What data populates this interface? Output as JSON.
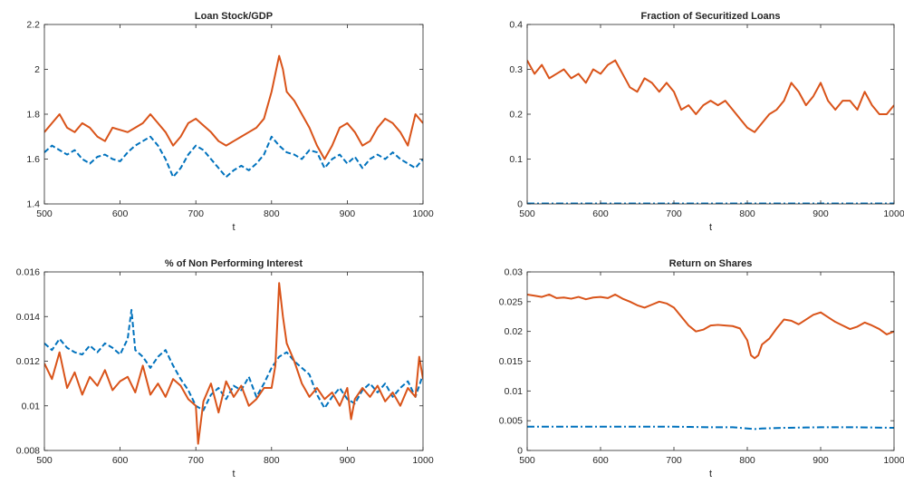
{
  "colors": {
    "series_a": "#0072bd",
    "series_b": "#d95319",
    "axis": "#262626"
  },
  "chart_data": [
    {
      "type": "line",
      "title": "Loan Stock/GDP",
      "xlabel": "t",
      "ylabel": "",
      "xlim": [
        500,
        1000
      ],
      "ylim": [
        1.4,
        2.2
      ],
      "xticks": [
        "500",
        "600",
        "700",
        "800",
        "900",
        "1000"
      ],
      "yticks": [
        "1.4",
        "1.6",
        "1.8",
        "2",
        "2.2"
      ],
      "ytick_values": [
        1.4,
        1.6,
        1.8,
        2.0,
        2.2
      ],
      "grid": false,
      "series": [
        {
          "style": "dashed",
          "color": "#0072bd",
          "x": [
            500,
            510,
            520,
            530,
            540,
            550,
            560,
            570,
            580,
            590,
            600,
            610,
            620,
            630,
            640,
            650,
            660,
            670,
            680,
            690,
            700,
            710,
            720,
            730,
            740,
            750,
            760,
            770,
            780,
            790,
            800,
            810,
            820,
            830,
            840,
            850,
            860,
            870,
            880,
            890,
            900,
            910,
            920,
            930,
            940,
            950,
            960,
            970,
            980,
            990,
            1000
          ],
          "y": [
            1.63,
            1.66,
            1.64,
            1.62,
            1.64,
            1.6,
            1.58,
            1.61,
            1.62,
            1.6,
            1.59,
            1.63,
            1.66,
            1.68,
            1.7,
            1.66,
            1.6,
            1.52,
            1.56,
            1.62,
            1.66,
            1.64,
            1.6,
            1.56,
            1.52,
            1.55,
            1.57,
            1.55,
            1.58,
            1.62,
            1.7,
            1.66,
            1.63,
            1.62,
            1.6,
            1.64,
            1.63,
            1.56,
            1.6,
            1.62,
            1.58,
            1.61,
            1.56,
            1.6,
            1.62,
            1.6,
            1.63,
            1.6,
            1.58,
            1.56,
            1.6
          ]
        },
        {
          "style": "solid",
          "color": "#d95319",
          "x": [
            500,
            510,
            520,
            530,
            540,
            550,
            560,
            570,
            580,
            590,
            600,
            610,
            620,
            630,
            640,
            650,
            660,
            670,
            680,
            690,
            700,
            710,
            720,
            730,
            740,
            750,
            760,
            770,
            780,
            790,
            800,
            805,
            810,
            815,
            820,
            830,
            840,
            850,
            860,
            870,
            880,
            890,
            900,
            910,
            920,
            930,
            940,
            950,
            960,
            970,
            980,
            990,
            1000
          ],
          "y": [
            1.72,
            1.76,
            1.8,
            1.74,
            1.72,
            1.76,
            1.74,
            1.7,
            1.68,
            1.74,
            1.73,
            1.72,
            1.74,
            1.76,
            1.8,
            1.76,
            1.72,
            1.66,
            1.7,
            1.76,
            1.78,
            1.75,
            1.72,
            1.68,
            1.66,
            1.68,
            1.7,
            1.72,
            1.74,
            1.78,
            1.9,
            1.98,
            2.06,
            2.0,
            1.9,
            1.86,
            1.8,
            1.74,
            1.66,
            1.6,
            1.66,
            1.74,
            1.76,
            1.72,
            1.66,
            1.68,
            1.74,
            1.78,
            1.76,
            1.72,
            1.66,
            1.8,
            1.76
          ]
        }
      ]
    },
    {
      "type": "line",
      "title": "Fraction of Securitized Loans",
      "xlabel": "t",
      "ylabel": "",
      "xlim": [
        500,
        1000
      ],
      "ylim": [
        0,
        0.4
      ],
      "xticks": [
        "500",
        "600",
        "700",
        "800",
        "900",
        "1000"
      ],
      "yticks": [
        "0",
        "0.1",
        "0.2",
        "0.3",
        "0.4"
      ],
      "ytick_values": [
        0,
        0.1,
        0.2,
        0.3,
        0.4
      ],
      "grid": false,
      "series": [
        {
          "style": "dashdot",
          "color": "#0072bd",
          "x": [
            500,
            1000
          ],
          "y": [
            0.001,
            0.001
          ]
        },
        {
          "style": "solid",
          "color": "#d95319",
          "x": [
            500,
            510,
            520,
            530,
            540,
            550,
            560,
            570,
            580,
            590,
            600,
            610,
            620,
            630,
            640,
            650,
            660,
            670,
            680,
            690,
            700,
            710,
            720,
            730,
            740,
            750,
            760,
            770,
            780,
            790,
            800,
            810,
            820,
            830,
            840,
            850,
            860,
            870,
            880,
            890,
            900,
            910,
            920,
            930,
            940,
            950,
            960,
            970,
            980,
            990,
            1000
          ],
          "y": [
            0.32,
            0.29,
            0.31,
            0.28,
            0.29,
            0.3,
            0.28,
            0.29,
            0.27,
            0.3,
            0.29,
            0.31,
            0.32,
            0.29,
            0.26,
            0.25,
            0.28,
            0.27,
            0.25,
            0.27,
            0.25,
            0.21,
            0.22,
            0.2,
            0.22,
            0.23,
            0.22,
            0.23,
            0.21,
            0.19,
            0.17,
            0.16,
            0.18,
            0.2,
            0.21,
            0.23,
            0.27,
            0.25,
            0.22,
            0.24,
            0.27,
            0.23,
            0.21,
            0.23,
            0.23,
            0.21,
            0.25,
            0.22,
            0.2,
            0.2,
            0.22
          ]
        }
      ]
    },
    {
      "type": "line",
      "title": "% of Non Performing Interest",
      "xlabel": "t",
      "ylabel": "",
      "xlim": [
        500,
        1000
      ],
      "ylim": [
        0.008,
        0.016
      ],
      "xticks": [
        "500",
        "600",
        "700",
        "800",
        "900",
        "1000"
      ],
      "yticks": [
        "0.008",
        "0.01",
        "0.012",
        "0.014",
        "0.016"
      ],
      "ytick_values": [
        0.008,
        0.01,
        0.012,
        0.014,
        0.016
      ],
      "grid": false,
      "series": [
        {
          "style": "dashed",
          "color": "#0072bd",
          "x": [
            500,
            510,
            520,
            530,
            540,
            550,
            560,
            570,
            580,
            590,
            600,
            610,
            615,
            620,
            630,
            640,
            650,
            660,
            670,
            680,
            690,
            700,
            710,
            720,
            730,
            740,
            750,
            760,
            770,
            780,
            790,
            800,
            810,
            820,
            830,
            840,
            850,
            860,
            870,
            880,
            890,
            900,
            910,
            920,
            930,
            940,
            950,
            960,
            970,
            980,
            990,
            1000
          ],
          "y": [
            0.0128,
            0.0125,
            0.013,
            0.0126,
            0.0124,
            0.0123,
            0.0127,
            0.0124,
            0.0128,
            0.0126,
            0.0123,
            0.013,
            0.0143,
            0.0125,
            0.0122,
            0.0117,
            0.0122,
            0.0125,
            0.0118,
            0.0112,
            0.0107,
            0.01,
            0.0098,
            0.0105,
            0.0108,
            0.0103,
            0.0109,
            0.0107,
            0.0113,
            0.0104,
            0.011,
            0.0117,
            0.0122,
            0.0124,
            0.012,
            0.0117,
            0.0114,
            0.0105,
            0.0099,
            0.0104,
            0.0108,
            0.0103,
            0.0101,
            0.0107,
            0.011,
            0.0106,
            0.011,
            0.0104,
            0.0108,
            0.0111,
            0.0104,
            0.0114
          ]
        },
        {
          "style": "solid",
          "color": "#d95319",
          "x": [
            500,
            510,
            520,
            530,
            540,
            550,
            560,
            570,
            580,
            590,
            600,
            610,
            620,
            630,
            640,
            650,
            660,
            670,
            680,
            690,
            700,
            703,
            710,
            720,
            730,
            740,
            750,
            760,
            770,
            780,
            790,
            800,
            805,
            810,
            815,
            820,
            830,
            840,
            850,
            860,
            870,
            880,
            890,
            900,
            905,
            910,
            920,
            930,
            940,
            950,
            960,
            970,
            980,
            990,
            995,
            1000
          ],
          "y": [
            0.0119,
            0.0112,
            0.0124,
            0.0108,
            0.0115,
            0.0105,
            0.0113,
            0.0109,
            0.0116,
            0.0107,
            0.0111,
            0.0113,
            0.0106,
            0.0118,
            0.0105,
            0.011,
            0.0104,
            0.0112,
            0.0109,
            0.0103,
            0.01,
            0.0083,
            0.0102,
            0.011,
            0.0097,
            0.0111,
            0.0104,
            0.0109,
            0.01,
            0.0103,
            0.0108,
            0.0108,
            0.0118,
            0.0155,
            0.014,
            0.0128,
            0.012,
            0.011,
            0.0104,
            0.0108,
            0.0103,
            0.0106,
            0.01,
            0.0108,
            0.0094,
            0.0103,
            0.0108,
            0.0104,
            0.0109,
            0.0102,
            0.0106,
            0.01,
            0.0108,
            0.0104,
            0.0122,
            0.0112
          ]
        }
      ]
    },
    {
      "type": "line",
      "title": "Return on Shares",
      "xlabel": "t",
      "ylabel": "",
      "xlim": [
        500,
        1000
      ],
      "ylim": [
        0,
        0.03
      ],
      "xticks": [
        "500",
        "600",
        "700",
        "800",
        "900",
        "1000"
      ],
      "yticks": [
        "0",
        "0.005",
        "0.01",
        "0.015",
        "0.02",
        "0.025",
        "0.03"
      ],
      "ytick_values": [
        0,
        0.005,
        0.01,
        0.015,
        0.02,
        0.025,
        0.03
      ],
      "grid": false,
      "series": [
        {
          "style": "dashdot",
          "color": "#0072bd",
          "x": [
            500,
            550,
            600,
            650,
            700,
            750,
            780,
            800,
            810,
            820,
            850,
            900,
            950,
            1000
          ],
          "y": [
            0.004,
            0.004,
            0.004,
            0.004,
            0.004,
            0.0039,
            0.0039,
            0.0037,
            0.0036,
            0.0037,
            0.0038,
            0.0039,
            0.0039,
            0.0038
          ]
        },
        {
          "style": "solid",
          "color": "#d95319",
          "x": [
            500,
            510,
            520,
            530,
            540,
            550,
            560,
            570,
            580,
            590,
            600,
            610,
            620,
            630,
            640,
            650,
            660,
            670,
            680,
            690,
            700,
            710,
            720,
            730,
            740,
            750,
            760,
            770,
            780,
            790,
            800,
            805,
            810,
            815,
            820,
            830,
            840,
            850,
            860,
            870,
            880,
            890,
            900,
            910,
            920,
            930,
            940,
            950,
            960,
            970,
            980,
            990,
            1000
          ],
          "y": [
            0.0262,
            0.026,
            0.0258,
            0.0262,
            0.0256,
            0.0257,
            0.0255,
            0.0258,
            0.0254,
            0.0257,
            0.0258,
            0.0256,
            0.0262,
            0.0255,
            0.025,
            0.0244,
            0.024,
            0.0245,
            0.025,
            0.0247,
            0.024,
            0.0225,
            0.021,
            0.02,
            0.0203,
            0.021,
            0.0211,
            0.021,
            0.0209,
            0.0205,
            0.0185,
            0.016,
            0.0155,
            0.016,
            0.0178,
            0.0188,
            0.0205,
            0.022,
            0.0218,
            0.0212,
            0.022,
            0.0228,
            0.0232,
            0.0224,
            0.0216,
            0.021,
            0.0204,
            0.0208,
            0.0215,
            0.021,
            0.0204,
            0.0195,
            0.02
          ]
        }
      ]
    }
  ]
}
